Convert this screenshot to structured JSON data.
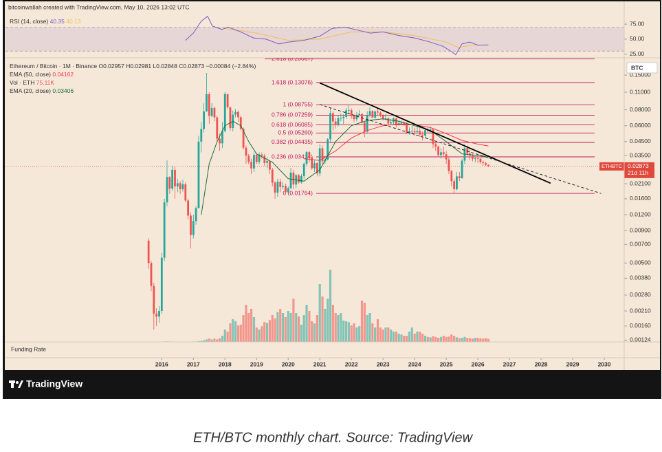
{
  "header": "bitcoinwallah created with TradingView.com, May 10, 2026 13:02 UTC",
  "chart_data": {
    "type": "candlestick",
    "title": "Ethereum / Bitcoin · 1M · Binance",
    "ohlc_legend": {
      "open": "O0.02957",
      "high": "H0.02981",
      "low": "L0.02848",
      "close": "C0.02873",
      "change": "−0.00084 (−2.84%)"
    },
    "currency": "BTC",
    "log_scale": true,
    "up_color": "#26a69a",
    "down_color": "#ef5350",
    "xlim": [
      2011.1,
      2030.63
    ],
    "xticks": [
      2016,
      2017,
      2018,
      2019,
      2020,
      2021,
      2022,
      2023,
      2024,
      2025,
      2026,
      2027,
      2028,
      2029,
      2030
    ],
    "ylim": [
      0.0012,
      0.205
    ],
    "yticks": [
      {
        "value": 0.15,
        "label": "0.15000"
      },
      {
        "value": 0.11,
        "label": "0.11000"
      },
      {
        "value": 0.08,
        "label": "0.08000"
      },
      {
        "value": 0.06,
        "label": "0.06000"
      },
      {
        "value": 0.045,
        "label": "0.04500"
      },
      {
        "value": 0.035,
        "label": "0.03500"
      },
      {
        "value": 0.021,
        "label": "0.02100"
      },
      {
        "value": 0.016,
        "label": "0.01600"
      },
      {
        "value": 0.012,
        "label": "0.01200"
      },
      {
        "value": 0.009,
        "label": "0.00900"
      },
      {
        "value": 0.007,
        "label": "0.00700"
      },
      {
        "value": 0.005,
        "label": "0.00500"
      },
      {
        "value": 0.0038,
        "label": "0.00380"
      },
      {
        "value": 0.0028,
        "label": "0.00280"
      },
      {
        "value": 0.0021,
        "label": "0.00210"
      },
      {
        "value": 0.0016,
        "label": "0.00160"
      },
      {
        "value": 0.00124,
        "label": "0.00124"
      }
    ],
    "x": [
      2015.583,
      2015.667,
      2015.75,
      2015.833,
      2015.917,
      2016,
      2016.083,
      2016.167,
      2016.25,
      2016.333,
      2016.417,
      2016.5,
      2016.583,
      2016.667,
      2016.75,
      2016.833,
      2016.917,
      2017,
      2017.083,
      2017.167,
      2017.25,
      2017.333,
      2017.417,
      2017.5,
      2017.583,
      2017.667,
      2017.75,
      2017.833,
      2017.917,
      2018,
      2018.083,
      2018.167,
      2018.25,
      2018.333,
      2018.417,
      2018.5,
      2018.583,
      2018.667,
      2018.75,
      2018.833,
      2018.917,
      2019,
      2019.083,
      2019.167,
      2019.25,
      2019.333,
      2019.417,
      2019.5,
      2019.583,
      2019.667,
      2019.75,
      2019.833,
      2019.917,
      2020,
      2020.083,
      2020.167,
      2020.25,
      2020.333,
      2020.417,
      2020.5,
      2020.583,
      2020.667,
      2020.75,
      2020.833,
      2020.917,
      2021,
      2021.083,
      2021.167,
      2021.25,
      2021.333,
      2021.417,
      2021.5,
      2021.583,
      2021.667,
      2021.75,
      2021.833,
      2021.917,
      2022,
      2022.083,
      2022.167,
      2022.25,
      2022.333,
      2022.417,
      2022.5,
      2022.583,
      2022.667,
      2022.75,
      2022.833,
      2022.917,
      2023,
      2023.083,
      2023.167,
      2023.25,
      2023.333,
      2023.417,
      2023.5,
      2023.583,
      2023.667,
      2023.75,
      2023.833,
      2023.917,
      2024,
      2024.083,
      2024.167,
      2024.25,
      2024.333,
      2024.417,
      2024.5,
      2024.583,
      2024.667,
      2024.75,
      2024.833,
      2024.917,
      2025,
      2025.083,
      2025.167,
      2025.25,
      2025.333,
      2025.417,
      2025.5,
      2025.583,
      2025.667,
      2025.75,
      2025.833,
      2025.917,
      2026,
      2026.083,
      2026.167,
      2026.25,
      2026.333
    ],
    "open": [
      0.0075,
      0.005,
      0.0033,
      0.002,
      0.0019,
      0.0021,
      0.0055,
      0.015,
      0.0237,
      0.0192,
      0.027,
      0.02,
      0.0212,
      0.019,
      0.0208,
      0.0155,
      0.0118,
      0.0083,
      0.0107,
      0.0135,
      0.045,
      0.0565,
      0.0777,
      0.106,
      0.0716,
      0.0827,
      0.0697,
      0.0474,
      0.0436,
      0.0545,
      0.1064,
      0.0837,
      0.0575,
      0.0733,
      0.077,
      0.0699,
      0.0567,
      0.0403,
      0.0349,
      0.0312,
      0.0277,
      0.0354,
      0.0311,
      0.0356,
      0.0348,
      0.0306,
      0.0316,
      0.0271,
      0.0214,
      0.0179,
      0.0218,
      0.0198,
      0.0202,
      0.018,
      0.0194,
      0.0257,
      0.0207,
      0.0245,
      0.0215,
      0.0241,
      0.0301,
      0.0372,
      0.0338,
      0.0278,
      0.0305,
      0.0253,
      0.0399,
      0.0315,
      0.0325,
      0.047,
      0.0753,
      0.0648,
      0.0608,
      0.0688,
      0.0689,
      0.0704,
      0.0792,
      0.0795,
      0.0716,
      0.0676,
      0.0725,
      0.0744,
      0.0636,
      0.054,
      0.072,
      0.078,
      0.0695,
      0.0776,
      0.0762,
      0.0722,
      0.0684,
      0.0684,
      0.0625,
      0.0639,
      0.0685,
      0.0611,
      0.0626,
      0.0634,
      0.062,
      0.0524,
      0.0545,
      0.0545,
      0.0535,
      0.0546,
      0.0511,
      0.0501,
      0.0553,
      0.0551,
      0.056,
      0.0429,
      0.041,
      0.0352,
      0.0371,
      0.0358,
      0.0326,
      0.0264,
      0.022,
      0.019,
      0.024,
      0.0232,
      0.0319,
      0.04,
      0.0362,
      0.035,
      0.033,
      0.0332,
      0.033,
      0.031,
      0.0305,
      0.02957
    ],
    "high": [
      0.0078,
      0.0052,
      0.0035,
      0.0022,
      0.0023,
      0.006,
      0.016,
      0.032,
      0.024,
      0.029,
      0.029,
      0.023,
      0.022,
      0.0225,
      0.0215,
      0.016,
      0.0125,
      0.012,
      0.014,
      0.05,
      0.064,
      0.09,
      0.156,
      0.11,
      0.09,
      0.085,
      0.072,
      0.052,
      0.064,
      0.11,
      0.105,
      0.084,
      0.079,
      0.081,
      0.079,
      0.072,
      0.058,
      0.042,
      0.036,
      0.033,
      0.037,
      0.036,
      0.037,
      0.037,
      0.036,
      0.034,
      0.032,
      0.028,
      0.022,
      0.023,
      0.023,
      0.0215,
      0.021,
      0.02,
      0.028,
      0.027,
      0.025,
      0.025,
      0.025,
      0.031,
      0.038,
      0.038,
      0.0345,
      0.032,
      0.031,
      0.043,
      0.042,
      0.035,
      0.048,
      0.083,
      0.078,
      0.069,
      0.072,
      0.075,
      0.074,
      0.083,
      0.088,
      0.082,
      0.074,
      0.077,
      0.08,
      0.075,
      0.065,
      0.078,
      0.084,
      0.08,
      0.079,
      0.082,
      0.078,
      0.074,
      0.074,
      0.07,
      0.068,
      0.07,
      0.069,
      0.066,
      0.066,
      0.065,
      0.064,
      0.058,
      0.06,
      0.058,
      0.061,
      0.06,
      0.054,
      0.058,
      0.058,
      0.059,
      0.057,
      0.045,
      0.042,
      0.04,
      0.041,
      0.038,
      0.034,
      0.027,
      0.023,
      0.026,
      0.026,
      0.033,
      0.043,
      0.042,
      0.039,
      0.036,
      0.0345,
      0.0345,
      0.0335,
      0.032,
      0.0312,
      0.02981
    ],
    "low": [
      0.0045,
      0.003,
      0.0015,
      0.0016,
      0.0017,
      0.002,
      0.0052,
      0.014,
      0.0175,
      0.0185,
      0.016,
      0.018,
      0.0175,
      0.0182,
      0.015,
      0.011,
      0.0065,
      0.0078,
      0.01,
      0.0135,
      0.037,
      0.053,
      0.077,
      0.062,
      0.07,
      0.065,
      0.045,
      0.038,
      0.04,
      0.053,
      0.081,
      0.055,
      0.054,
      0.07,
      0.064,
      0.055,
      0.039,
      0.03,
      0.03,
      0.025,
      0.026,
      0.03,
      0.03,
      0.033,
      0.029,
      0.028,
      0.025,
      0.02,
      0.016,
      0.0165,
      0.018,
      0.019,
      0.0175,
      0.0175,
      0.019,
      0.019,
      0.0195,
      0.021,
      0.021,
      0.023,
      0.029,
      0.031,
      0.027,
      0.026,
      0.024,
      0.024,
      0.03,
      0.03,
      0.032,
      0.044,
      0.055,
      0.057,
      0.059,
      0.065,
      0.062,
      0.068,
      0.074,
      0.068,
      0.064,
      0.065,
      0.072,
      0.062,
      0.049,
      0.052,
      0.07,
      0.069,
      0.068,
      0.072,
      0.07,
      0.066,
      0.066,
      0.06,
      0.061,
      0.062,
      0.058,
      0.06,
      0.061,
      0.06,
      0.0515,
      0.051,
      0.052,
      0.05,
      0.052,
      0.049,
      0.046,
      0.048,
      0.053,
      0.052,
      0.04,
      0.038,
      0.034,
      0.033,
      0.034,
      0.03,
      0.025,
      0.02,
      0.0176,
      0.0185,
      0.022,
      0.023,
      0.03,
      0.035,
      0.032,
      0.0315,
      0.031,
      0.0305,
      0.03,
      0.029,
      0.029,
      0.02848
    ],
    "close": [
      0.005,
      0.0033,
      0.002,
      0.0019,
      0.0021,
      0.0055,
      0.015,
      0.0237,
      0.0192,
      0.027,
      0.02,
      0.0212,
      0.019,
      0.0208,
      0.0155,
      0.0118,
      0.0083,
      0.0107,
      0.0135,
      0.045,
      0.0565,
      0.0777,
      0.106,
      0.0716,
      0.0827,
      0.0697,
      0.0474,
      0.0436,
      0.0545,
      0.1064,
      0.0837,
      0.0575,
      0.0733,
      0.077,
      0.0699,
      0.0567,
      0.0403,
      0.0349,
      0.0312,
      0.0277,
      0.0354,
      0.0311,
      0.0356,
      0.0348,
      0.0306,
      0.0316,
      0.0271,
      0.0214,
      0.0179,
      0.0218,
      0.0198,
      0.0202,
      0.018,
      0.0194,
      0.0257,
      0.0207,
      0.0245,
      0.0215,
      0.0241,
      0.0301,
      0.0372,
      0.0338,
      0.0278,
      0.0305,
      0.0253,
      0.0399,
      0.0315,
      0.0325,
      0.047,
      0.0753,
      0.0648,
      0.0608,
      0.0688,
      0.0689,
      0.0704,
      0.0792,
      0.0795,
      0.0716,
      0.0676,
      0.0725,
      0.0744,
      0.0636,
      0.054,
      0.072,
      0.078,
      0.0695,
      0.0776,
      0.0762,
      0.0722,
      0.0684,
      0.0684,
      0.0625,
      0.0639,
      0.0685,
      0.0611,
      0.0626,
      0.0634,
      0.062,
      0.0524,
      0.0545,
      0.0545,
      0.0535,
      0.0546,
      0.0511,
      0.0501,
      0.0553,
      0.0551,
      0.056,
      0.0429,
      0.041,
      0.0352,
      0.0371,
      0.0358,
      0.0326,
      0.0264,
      0.022,
      0.019,
      0.024,
      0.0232,
      0.0319,
      0.04,
      0.0362,
      0.035,
      0.033,
      0.0332,
      0.033,
      0.031,
      0.0305,
      0.02957,
      0.02873
    ],
    "volume": {
      "name": "Vol · ETH",
      "last_label": "75.11K",
      "values": [
        5000,
        5000,
        5000,
        5000,
        5000,
        8000,
        10000,
        12000,
        10000,
        10000,
        8000,
        8000,
        8000,
        8000,
        8000,
        8000,
        8000,
        10000,
        10000,
        20000,
        25000,
        40000,
        60000,
        80000,
        60000,
        80000,
        60000,
        90000,
        150000,
        300000,
        250000,
        450000,
        550000,
        500000,
        400000,
        420000,
        650000,
        900000,
        700000,
        800000,
        600000,
        350000,
        300000,
        380000,
        480000,
        460000,
        530000,
        650000,
        570000,
        720000,
        800000,
        700000,
        600000,
        750000,
        700000,
        1050000,
        700000,
        620000,
        420000,
        650000,
        900000,
        750000,
        500000,
        450000,
        650000,
        1400000,
        1100000,
        800000,
        1050000,
        1750000,
        900000,
        700000,
        650000,
        700000,
        520000,
        500000,
        480000,
        400000,
        450000,
        350000,
        380000,
        1000000,
        950000,
        650000,
        700000,
        450000,
        350000,
        550000,
        350000,
        300000,
        350000,
        350000,
        300000,
        250000,
        250000,
        200000,
        180000,
        150000,
        150000,
        250000,
        350000,
        200000,
        250000,
        250000,
        200000,
        150000,
        120000,
        110000,
        140000,
        120000,
        100000,
        120000,
        150000,
        120000,
        130000,
        180000,
        150000,
        110000,
        90000,
        100000,
        120000,
        100000,
        90000,
        80000,
        100000,
        100000,
        90000,
        80000,
        90000,
        75110
      ]
    },
    "indicators": [
      {
        "name": "EMA (50, close)",
        "value_label": "0.04162",
        "color": "#f23645",
        "x": [
          2020.5,
          2021,
          2021.5,
          2022,
          2022.5,
          2023,
          2023.5,
          2024,
          2024.5,
          2025,
          2025.5,
          2026,
          2026.333
        ],
        "values": [
          0.033,
          0.032,
          0.038,
          0.048,
          0.055,
          0.06,
          0.062,
          0.061,
          0.058,
          0.052,
          0.046,
          0.043,
          0.04162
        ]
      },
      {
        "name": "EMA (20, close)",
        "value_label": "0.03406",
        "color": "#1b6e3a",
        "x": [
          2017.25,
          2017.5,
          2017.75,
          2018,
          2018.25,
          2018.5,
          2018.75,
          2019,
          2019.5,
          2020,
          2020.5,
          2021,
          2021.5,
          2022,
          2022.5,
          2023,
          2023.5,
          2024,
          2024.5,
          2025,
          2025.5,
          2026,
          2026.333
        ],
        "values": [
          0.012,
          0.03,
          0.045,
          0.06,
          0.065,
          0.06,
          0.045,
          0.036,
          0.031,
          0.023,
          0.022,
          0.027,
          0.045,
          0.06,
          0.066,
          0.068,
          0.065,
          0.06,
          0.055,
          0.045,
          0.036,
          0.035,
          0.03406
        ]
      }
    ],
    "fibonacci": {
      "color": "#c2185b",
      "levels": [
        {
          "label": "2.618 (0.20067)",
          "value": 0.20067
        },
        {
          "label": "1.618 (0.13076)",
          "value": 0.13076
        },
        {
          "label": "1 (0.08755)",
          "value": 0.08755
        },
        {
          "label": "0.786 (0.07259)",
          "value": 0.07259
        },
        {
          "label": "0.618 (0.06085)",
          "value": 0.06085
        },
        {
          "label": "0.5 (0.05260)",
          "value": 0.0526
        },
        {
          "label": "0.382 (0.04435)",
          "value": 0.04435
        },
        {
          "label": "0.236 (0.03414)",
          "value": 0.03414
        },
        {
          "label": "0 (0.01764)",
          "value": 0.01764
        }
      ]
    },
    "trendlines": [
      {
        "style": "solid",
        "color": "#000000",
        "x": [
          2021,
          2028.3
        ],
        "values": [
          0.13,
          0.0212
        ]
      },
      {
        "style": "dashed",
        "color": "#222222",
        "x": [
          2021,
          2029.9
        ],
        "values": [
          0.088,
          0.0176
        ]
      }
    ],
    "price_label": {
      "symbol": "ETHBTC",
      "price": "0.02873",
      "countdown": "21d 11h",
      "color": "#e0483c"
    },
    "rsi": {
      "name": "RSI (14, close)",
      "value_label": "40.35",
      "color": "#7e57c2",
      "ma_label": "40.13",
      "ma_color": "#f2c14e",
      "ylim": [
        20,
        90
      ],
      "yticks": [
        {
          "value": 75,
          "label": "75.00"
        },
        {
          "value": 50,
          "label": "50.00"
        },
        {
          "value": 25,
          "label": "25.00"
        }
      ],
      "band": [
        30,
        70
      ],
      "x": [
        2016.75,
        2017,
        2017.25,
        2017.45,
        2017.6,
        2017.9,
        2018.1,
        2018.5,
        2018.9,
        2019.3,
        2019.7,
        2020,
        2020.5,
        2021,
        2021.4,
        2021.8,
        2022.2,
        2022.6,
        2023,
        2023.5,
        2024,
        2024.5,
        2024.9,
        2025.2,
        2025.3,
        2025.5,
        2025.75,
        2026,
        2026.333
      ],
      "values": [
        48,
        60,
        80,
        88,
        72,
        66,
        70,
        62,
        52,
        50,
        42,
        45,
        48,
        55,
        68,
        70,
        65,
        60,
        62,
        56,
        52,
        45,
        38,
        28,
        24,
        42,
        45,
        40,
        40.35
      ],
      "ma_x": [
        2018,
        2019,
        2020,
        2021,
        2022,
        2023,
        2024,
        2025,
        2025.4,
        2025.8,
        2026.333
      ],
      "ma_values": [
        68,
        60,
        48,
        50,
        62,
        62,
        56,
        45,
        36,
        40,
        40.13
      ]
    },
    "funding": {
      "name": "Funding Rate"
    }
  },
  "branding": "TradingView",
  "caption": "ETH/BTC monthly chart. Source: TradingView"
}
